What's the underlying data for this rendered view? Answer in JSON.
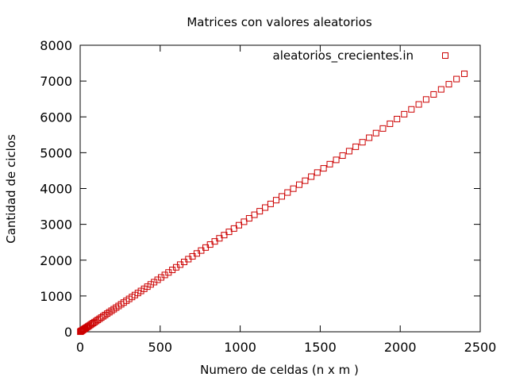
{
  "chart_data": {
    "type": "scatter",
    "title": "Matrices con valores aleatorios",
    "xlabel": "Numero de celdas (n x m )",
    "ylabel": "Cantidad de ciclos",
    "xlim": [
      0,
      2500
    ],
    "ylim": [
      0,
      8000
    ],
    "xticks": [
      0,
      500,
      1000,
      1500,
      2000,
      2500
    ],
    "yticks": [
      0,
      1000,
      2000,
      3000,
      4000,
      5000,
      6000,
      7000,
      8000
    ],
    "grid": false,
    "legend_position": "top-right",
    "marker": "open-square",
    "color": "#cc0000",
    "series": [
      {
        "name": "aleatorios_crecientes.in",
        "x": [
          1,
          2,
          4,
          6,
          9,
          12,
          16,
          20,
          25,
          30,
          36,
          42,
          49,
          56,
          64,
          72,
          81,
          90,
          100,
          110,
          121,
          132,
          144,
          156,
          169,
          182,
          196,
          210,
          225,
          240,
          256,
          272,
          289,
          306,
          324,
          342,
          361,
          380,
          400,
          420,
          441,
          462,
          484,
          506,
          529,
          552,
          576,
          600,
          625,
          650,
          676,
          702,
          729,
          756,
          784,
          812,
          841,
          870,
          900,
          930,
          961,
          992,
          1024,
          1056,
          1089,
          1122,
          1156,
          1190,
          1225,
          1260,
          1296,
          1332,
          1369,
          1406,
          1444,
          1482,
          1521,
          1560,
          1600,
          1640,
          1681,
          1722,
          1764,
          1806,
          1849,
          1892,
          1936,
          1980,
          2025,
          2070,
          2116,
          2162,
          2209,
          2256,
          2304,
          2352,
          2401
        ],
        "y": [
          3,
          6,
          12,
          18,
          27,
          36,
          48,
          60,
          75,
          90,
          108,
          126,
          147,
          168,
          192,
          216,
          243,
          270,
          300,
          330,
          363,
          396,
          432,
          468,
          507,
          546,
          588,
          630,
          675,
          720,
          768,
          816,
          867,
          918,
          972,
          1026,
          1083,
          1140,
          1200,
          1260,
          1323,
          1386,
          1452,
          1518,
          1587,
          1656,
          1728,
          1800,
          1875,
          1950,
          2028,
          2106,
          2187,
          2268,
          2352,
          2436,
          2523,
          2610,
          2700,
          2790,
          2883,
          2976,
          3072,
          3168,
          3267,
          3366,
          3468,
          3570,
          3675,
          3780,
          3888,
          3996,
          4107,
          4218,
          4332,
          4446,
          4563,
          4680,
          4800,
          4920,
          5043,
          5166,
          5292,
          5418,
          5547,
          5676,
          5808,
          5940,
          6075,
          6210,
          6348,
          6486,
          6627,
          6768,
          6912,
          7056,
          7203
        ]
      }
    ]
  }
}
